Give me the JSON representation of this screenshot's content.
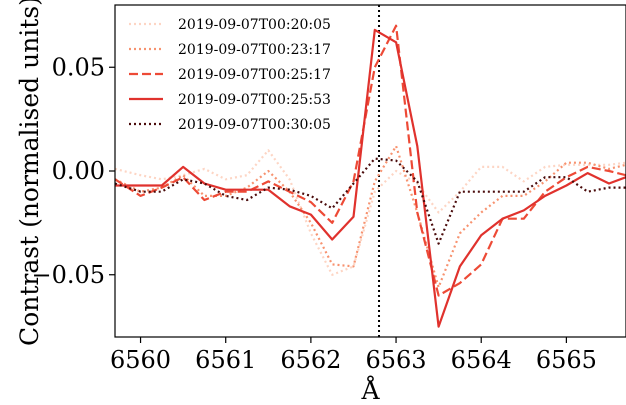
{
  "chart_data": {
    "type": "line",
    "xlabel": "Å",
    "ylabel": "Contrast (normalised units)",
    "xlim": [
      6559.7,
      6565.7
    ],
    "ylim": [
      -0.08,
      0.08
    ],
    "xticks": [
      6560,
      6561,
      6562,
      6563,
      6564,
      6565
    ],
    "xtick_labels": [
      "6560",
      "6561",
      "6562",
      "6563",
      "6564",
      "6565"
    ],
    "yticks": [
      -0.05,
      0.0,
      0.05
    ],
    "ytick_labels": [
      "−0.05",
      "0.00",
      "0.05"
    ],
    "vline": {
      "x": 6562.8,
      "style": "dotted",
      "color": "#000000"
    },
    "legend_position": "top-left",
    "grid": false,
    "x": [
      6559.7,
      6560.0,
      6560.25,
      6560.5,
      6560.75,
      6561.0,
      6561.25,
      6561.5,
      6561.75,
      6562.0,
      6562.25,
      6562.5,
      6562.75,
      6563.0,
      6563.25,
      6563.5,
      6563.75,
      6564.0,
      6564.25,
      6564.5,
      6564.75,
      6565.0,
      6565.25,
      6565.5,
      6565.7
    ],
    "series": [
      {
        "name": "2019-09-07T00:20:05",
        "color": "#fdd5c4",
        "dash": "dotted",
        "values": [
          0.001,
          -0.002,
          -0.004,
          -0.002,
          0.001,
          -0.004,
          -0.002,
          0.01,
          -0.004,
          -0.03,
          -0.05,
          -0.046,
          -0.01,
          0.0,
          -0.006,
          -0.02,
          -0.01,
          0.002,
          0.002,
          -0.005,
          0.002,
          0.003,
          0.003,
          0.003,
          0.004
        ]
      },
      {
        "name": "2019-09-07T00:23:17",
        "color": "#f7926f",
        "dash": "dotted",
        "values": [
          -0.004,
          -0.01,
          -0.008,
          -0.002,
          -0.012,
          -0.012,
          -0.008,
          0.0,
          -0.01,
          -0.025,
          -0.045,
          -0.046,
          -0.005,
          0.012,
          -0.02,
          -0.056,
          -0.03,
          -0.02,
          -0.012,
          -0.012,
          -0.005,
          0.004,
          0.004,
          0.001,
          0.003
        ]
      },
      {
        "name": "2019-09-07T00:25:17",
        "color": "#ed4a36",
        "dash": "dashed",
        "values": [
          -0.004,
          -0.012,
          -0.008,
          -0.003,
          -0.014,
          -0.01,
          -0.01,
          -0.005,
          -0.01,
          -0.015,
          -0.025,
          -0.005,
          0.05,
          0.07,
          -0.02,
          -0.06,
          -0.054,
          -0.045,
          -0.023,
          -0.023,
          -0.01,
          -0.003,
          0.002,
          0.0,
          -0.002
        ]
      },
      {
        "name": "2019-09-07T00:25:53",
        "color": "#e0322d",
        "dash": "solid",
        "values": [
          -0.007,
          -0.007,
          -0.007,
          0.002,
          -0.006,
          -0.009,
          -0.009,
          -0.009,
          -0.017,
          -0.021,
          -0.033,
          -0.022,
          0.068,
          0.062,
          0.012,
          -0.075,
          -0.046,
          -0.031,
          -0.023,
          -0.019,
          -0.012,
          -0.007,
          -0.001,
          -0.006,
          -0.003
        ]
      },
      {
        "name": "2019-09-07T00:30:05",
        "color": "#4a0b0b",
        "dash": "dotted",
        "values": [
          -0.006,
          -0.01,
          -0.01,
          -0.004,
          -0.006,
          -0.012,
          -0.014,
          -0.008,
          -0.009,
          -0.012,
          -0.018,
          -0.006,
          0.006,
          0.005,
          -0.005,
          -0.035,
          -0.01,
          -0.01,
          -0.01,
          -0.01,
          -0.003,
          -0.003,
          -0.01,
          -0.008,
          -0.008
        ]
      }
    ]
  }
}
